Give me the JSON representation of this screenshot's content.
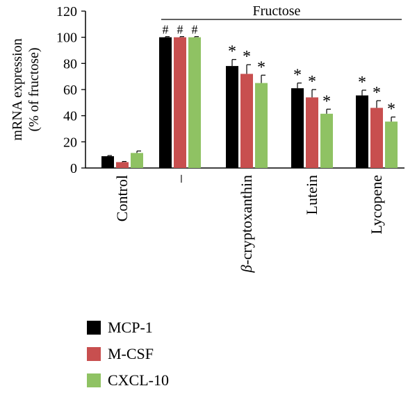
{
  "chart_data": {
    "type": "bar",
    "ylabel_line1": "mRNA expression",
    "ylabel_line2": "(% of fructose)",
    "ylim": [
      0,
      120
    ],
    "yticks": [
      0,
      20,
      40,
      60,
      80,
      100,
      120
    ],
    "bracket_label": "Fructose",
    "categories": [
      "Control",
      "–",
      "β-cryptoxanthin",
      "Lutein",
      "Lycopene"
    ],
    "series": [
      {
        "name": "MCP-1",
        "color": "#000000",
        "values": [
          9,
          100,
          78,
          61,
          55.5
        ],
        "errors": [
          0.5,
          0.5,
          5,
          4,
          4
        ],
        "marks": [
          "",
          "#",
          "*",
          "*",
          "*"
        ]
      },
      {
        "name": "M-CSF",
        "color": "#c84f4f",
        "values": [
          4.5,
          100,
          72,
          54,
          46
        ],
        "errors": [
          0.5,
          0.5,
          7,
          6,
          5.5
        ],
        "marks": [
          "",
          "#",
          "*",
          "*",
          "*"
        ]
      },
      {
        "name": "CXCL-10",
        "color": "#8fc263",
        "values": [
          11.5,
          100,
          65,
          41.5,
          35.5
        ],
        "errors": [
          1.5,
          0.5,
          6,
          3.5,
          3.5
        ],
        "marks": [
          "",
          "#",
          "*",
          "*",
          "*"
        ]
      }
    ],
    "grid": false,
    "legend_position": "bottom-left"
  }
}
